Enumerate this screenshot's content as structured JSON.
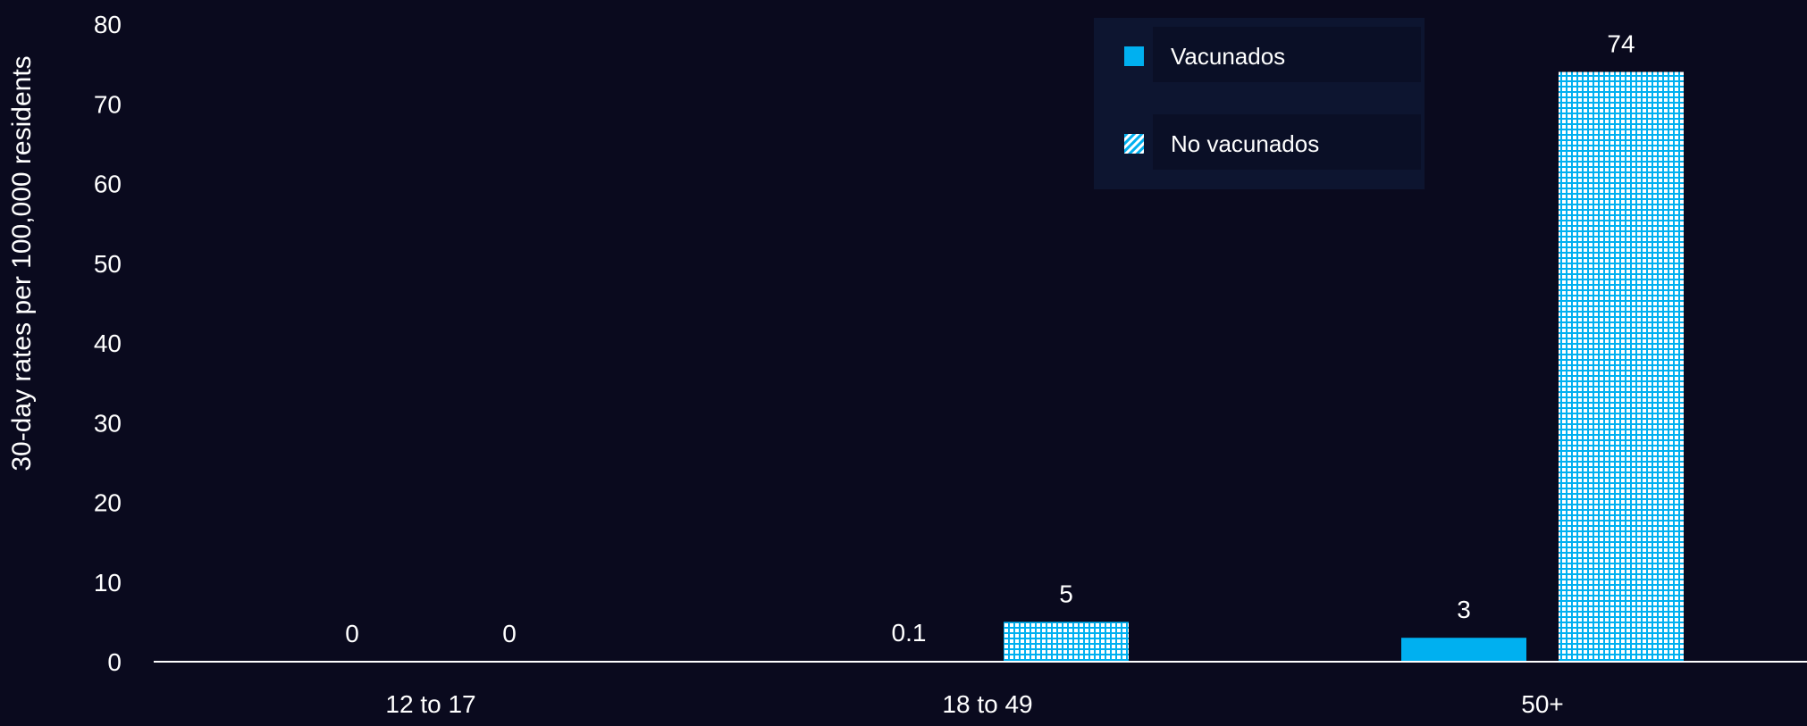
{
  "chart_data": {
    "type": "bar",
    "title": "",
    "xlabel": "",
    "ylabel": "30-day rates per 100,000 residents",
    "ylim": [
      0,
      80
    ],
    "yticks": [
      0,
      10,
      20,
      30,
      40,
      50,
      60,
      70,
      80
    ],
    "categories": [
      "12 to 17",
      "18 to 49",
      "50+"
    ],
    "series": [
      {
        "name": "Vacunados",
        "values": [
          0,
          0.1,
          3
        ],
        "labels": [
          "0",
          "0.1",
          "3"
        ],
        "color": "#00b0f0",
        "pattern": "solid"
      },
      {
        "name": "No vacunados",
        "values": [
          0,
          5,
          74
        ],
        "labels": [
          "0",
          "5",
          "74"
        ],
        "color": "#00b0f0",
        "pattern": "grid"
      }
    ],
    "legend": "top-right",
    "grid": false
  },
  "colors": {
    "background": "#0a0a1e",
    "axis": "#ffffff",
    "text": "#ffffff",
    "legend_bg": "#0d1530",
    "legend_item_bg": "#0a0f26"
  }
}
